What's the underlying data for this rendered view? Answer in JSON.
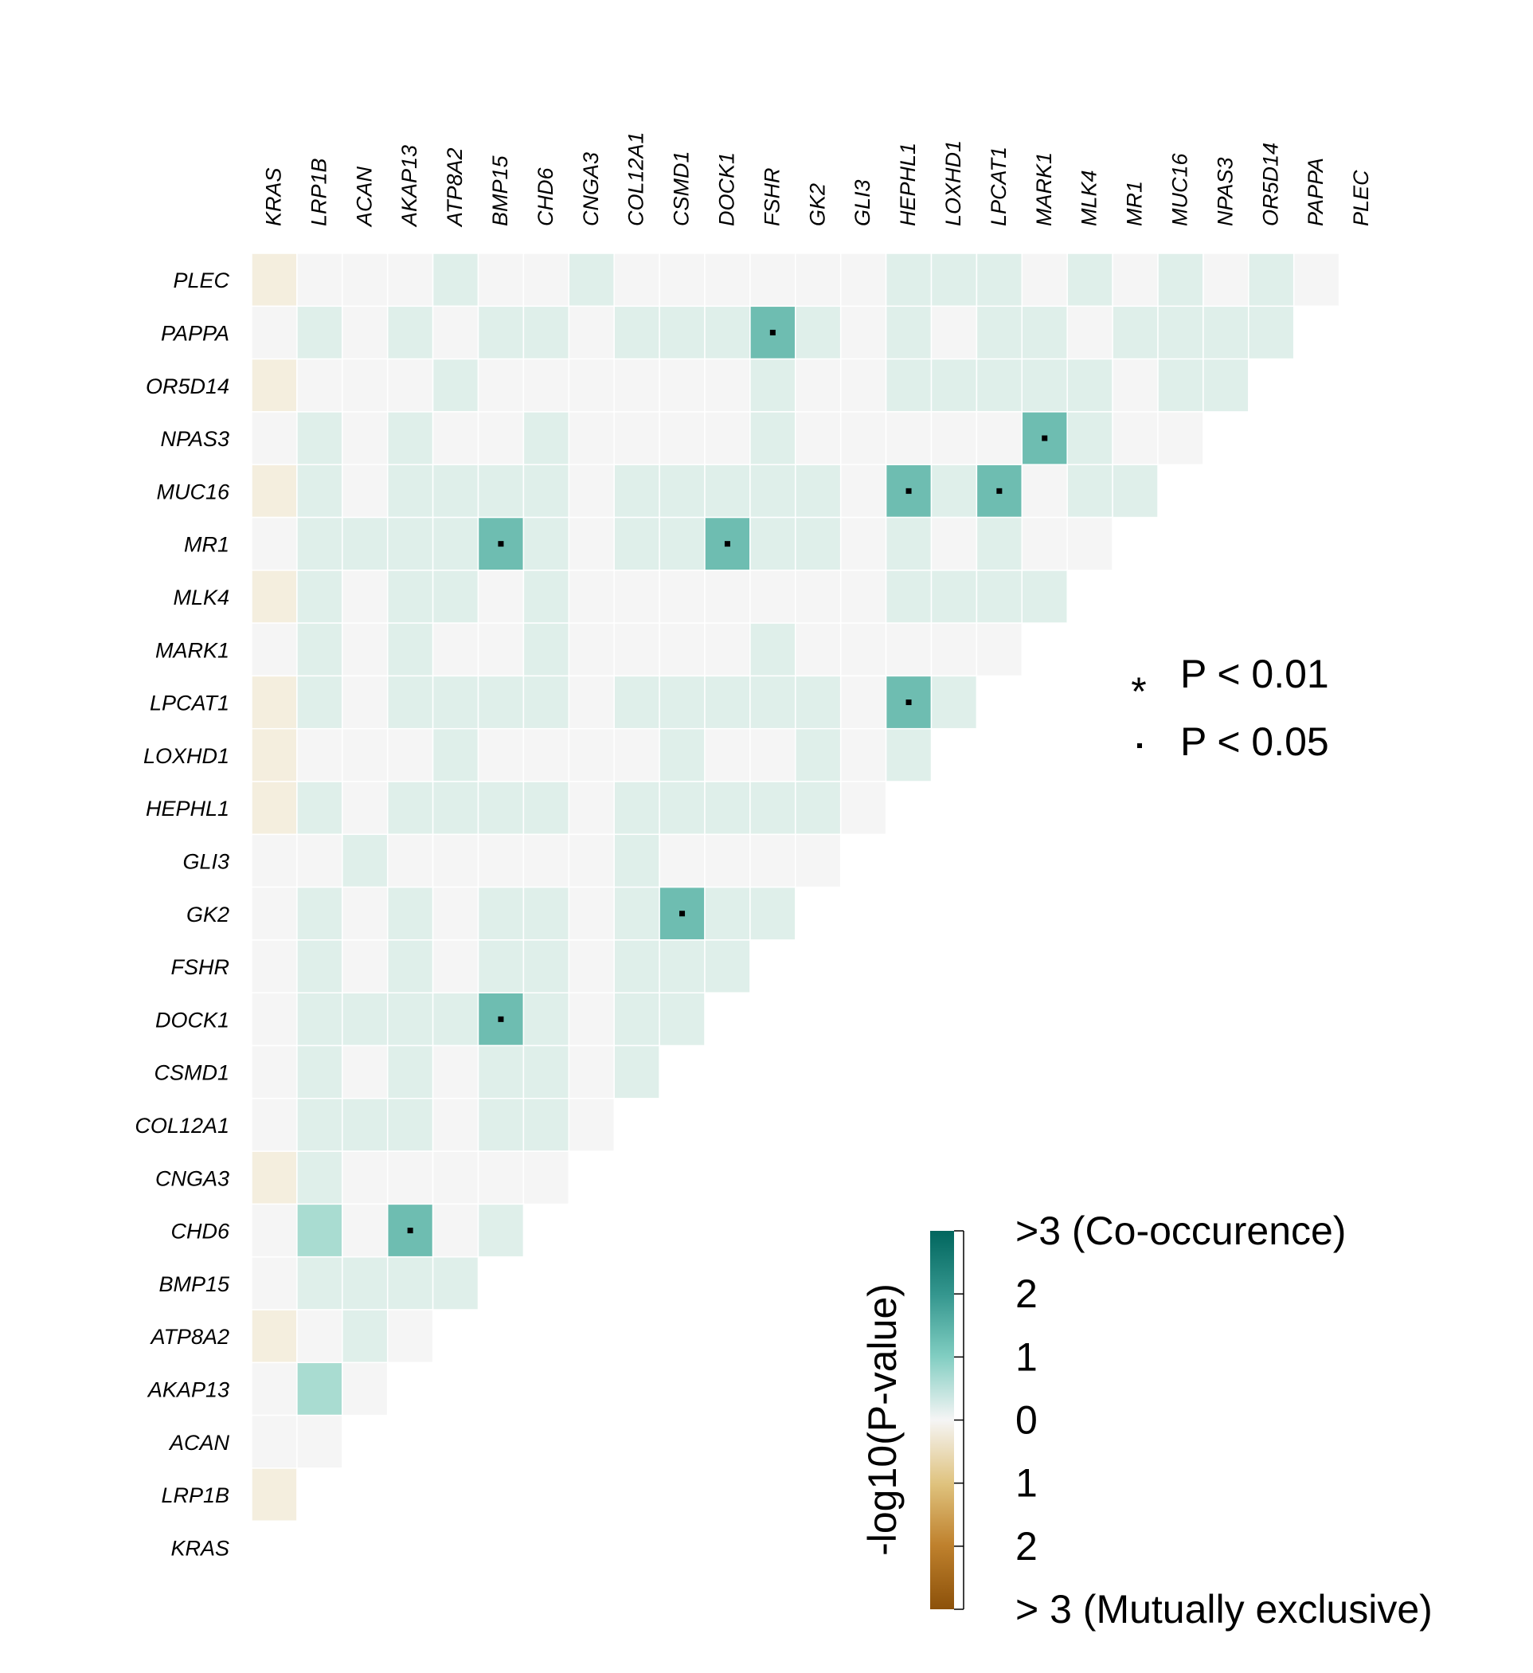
{
  "chart_data": {
    "type": "heatmap",
    "genes": [
      "KRAS",
      "LRP1B",
      "ACAN",
      "AKAP13",
      "ATP8A2",
      "BMP15",
      "CHD6",
      "CNGA3",
      "COL12A1",
      "CSMD1",
      "DOCK1",
      "FSHR",
      "GK2",
      "GLI3",
      "HEPHL1",
      "LOXHD1",
      "LPCAT1",
      "MARK1",
      "MLK4",
      "MR1",
      "MUC16",
      "NPAS3",
      "OR5D14",
      "PAPPA",
      "PLEC"
    ],
    "rows_top_to_bottom": [
      {
        "gene": "PLEC",
        "values": [
          -0.3,
          0,
          0,
          0,
          0.4,
          0,
          0,
          0.4,
          0,
          0,
          0,
          0,
          0,
          0,
          0.4,
          0.4,
          0.4,
          0,
          0.4,
          0,
          0.4,
          0,
          0.4,
          0
        ]
      },
      {
        "gene": "PAPPA",
        "values": [
          0,
          0.4,
          0,
          0.4,
          0,
          0.4,
          0.4,
          0,
          0.4,
          0.4,
          0.4,
          2,
          0.4,
          0,
          0.4,
          0,
          0.4,
          0.4,
          0,
          0.4,
          0.4,
          0.4,
          0.4
        ]
      },
      {
        "gene": "OR5D14",
        "values": [
          -0.3,
          0,
          0,
          0,
          0.4,
          0,
          0,
          0,
          0,
          0,
          0,
          0.4,
          0,
          0,
          0.4,
          0.4,
          0.4,
          0.4,
          0.4,
          0,
          0.4,
          0.4
        ]
      },
      {
        "gene": "NPAS3",
        "values": [
          0,
          0.4,
          0,
          0.4,
          0,
          0,
          0.4,
          0,
          0,
          0,
          0,
          0.4,
          0,
          0,
          0,
          0,
          0,
          2,
          0.4,
          0,
          0
        ]
      },
      {
        "gene": "MUC16",
        "values": [
          -0.3,
          0.4,
          0,
          0.4,
          0.4,
          0.4,
          0.4,
          0,
          0.4,
          0.4,
          0.4,
          0.4,
          0.4,
          0,
          2,
          0.4,
          2,
          0,
          0.4,
          0.4
        ]
      },
      {
        "gene": "MR1",
        "values": [
          0,
          0.4,
          0.4,
          0.4,
          0.4,
          2,
          0.4,
          0,
          0.4,
          0.4,
          2,
          0.4,
          0.4,
          0,
          0.4,
          0,
          0.4,
          0,
          0
        ]
      },
      {
        "gene": "MLK4",
        "values": [
          -0.3,
          0.4,
          0,
          0.4,
          0.4,
          0,
          0.4,
          0,
          0,
          0,
          0,
          0,
          0,
          0,
          0.4,
          0.4,
          0.4,
          0.4
        ]
      },
      {
        "gene": "MARK1",
        "values": [
          0,
          0.4,
          0,
          0.4,
          0,
          0,
          0.4,
          0,
          0,
          0,
          0,
          0.4,
          0,
          0,
          0,
          0,
          0
        ]
      },
      {
        "gene": "LPCAT1",
        "values": [
          -0.3,
          0.4,
          0,
          0.4,
          0.4,
          0.4,
          0.4,
          0,
          0.4,
          0.4,
          0.4,
          0.4,
          0.4,
          0,
          2,
          0.4
        ]
      },
      {
        "gene": "LOXHD1",
        "values": [
          -0.3,
          0,
          0,
          0,
          0.4,
          0,
          0,
          0,
          0,
          0.4,
          0,
          0,
          0.4,
          0,
          0.4
        ]
      },
      {
        "gene": "HEPHL1",
        "values": [
          -0.3,
          0.4,
          0,
          0.4,
          0.4,
          0.4,
          0.4,
          0,
          0.4,
          0.4,
          0.4,
          0.4,
          0.4,
          0
        ]
      },
      {
        "gene": "GLI3",
        "values": [
          0,
          0,
          0.4,
          0,
          0,
          0,
          0,
          0,
          0.4,
          0,
          0,
          0,
          0
        ]
      },
      {
        "gene": "GK2",
        "values": [
          0,
          0.4,
          0,
          0.4,
          0,
          0.4,
          0.4,
          0,
          0.4,
          2,
          0.4,
          0.4
        ]
      },
      {
        "gene": "FSHR",
        "values": [
          0,
          0.4,
          0,
          0.4,
          0,
          0.4,
          0.4,
          0,
          0.4,
          0.4,
          0.4
        ]
      },
      {
        "gene": "DOCK1",
        "values": [
          0,
          0.4,
          0.4,
          0.4,
          0.4,
          2,
          0.4,
          0,
          0.4,
          0.4
        ]
      },
      {
        "gene": "CSMD1",
        "values": [
          0,
          0.4,
          0,
          0.4,
          0,
          0.4,
          0.4,
          0,
          0.4
        ]
      },
      {
        "gene": "COL12A1",
        "values": [
          0,
          0.4,
          0.4,
          0.4,
          0,
          0.4,
          0.4,
          0
        ]
      },
      {
        "gene": "CNGA3",
        "values": [
          -0.3,
          0.4,
          0,
          0,
          0,
          0,
          0
        ]
      },
      {
        "gene": "CHD6",
        "values": [
          0,
          1.2,
          0,
          2,
          0,
          0.4
        ]
      },
      {
        "gene": "BMP15",
        "values": [
          0,
          0.4,
          0.4,
          0.4,
          0.4
        ]
      },
      {
        "gene": "ATP8A2",
        "values": [
          -0.3,
          0,
          0.4,
          0
        ]
      },
      {
        "gene": "AKAP13",
        "values": [
          0,
          1.2,
          0
        ]
      },
      {
        "gene": "ACAN",
        "values": [
          0,
          0
        ]
      },
      {
        "gene": "LRP1B",
        "values": [
          -0.3
        ]
      },
      {
        "gene": "KRAS",
        "values": []
      }
    ],
    "significant_cells": [
      {
        "row": "PAPPA",
        "col": "FSHR",
        "symbol": "dot"
      },
      {
        "row": "NPAS3",
        "col": "MARK1",
        "symbol": "dot"
      },
      {
        "row": "MUC16",
        "col": "HEPHL1",
        "symbol": "dot"
      },
      {
        "row": "MUC16",
        "col": "LPCAT1",
        "symbol": "dot"
      },
      {
        "row": "MR1",
        "col": "BMP15",
        "symbol": "dot"
      },
      {
        "row": "MR1",
        "col": "DOCK1",
        "symbol": "dot"
      },
      {
        "row": "LPCAT1",
        "col": "HEPHL1",
        "symbol": "dot"
      },
      {
        "row": "GK2",
        "col": "CSMD1",
        "symbol": "dot"
      },
      {
        "row": "DOCK1",
        "col": "BMP15",
        "symbol": "dot"
      },
      {
        "row": "CHD6",
        "col": "AKAP13",
        "symbol": "dot"
      }
    ],
    "significance_legend": [
      {
        "symbol": "*",
        "label": "P < 0.01"
      },
      {
        "symbol": "·",
        "label": "P < 0.05"
      }
    ],
    "colorbar": {
      "title": "-log10(P-value)",
      "range": [
        -3,
        3
      ],
      "ticks": [
        {
          "value": 3,
          "label": ">3 (Co-occurence)"
        },
        {
          "value": 2,
          "label": "2"
        },
        {
          "value": 1,
          "label": "1"
        },
        {
          "value": 0,
          "label": "0"
        },
        {
          "value": -1,
          "label": "1"
        },
        {
          "value": -2,
          "label": "2"
        },
        {
          "value": -3,
          "label": "> 3 (Mutually exclusive)"
        }
      ],
      "colors": {
        "co_occurrence_max": "#01665e",
        "mid": "#f5f5f5",
        "mutually_exclusive_max": "#8c510a"
      }
    }
  }
}
